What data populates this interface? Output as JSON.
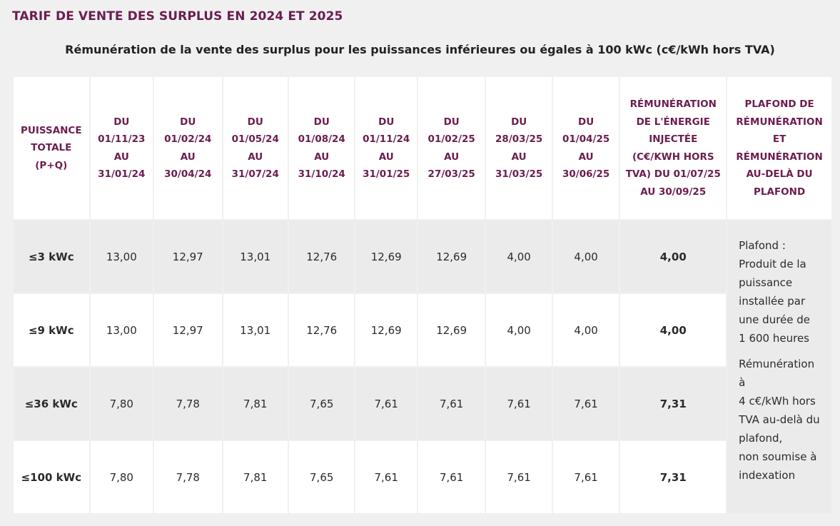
{
  "heading": "TARIF DE VENTE DES SURPLUS EN 2024 ET 2025",
  "caption": "Rémunération de la vente des surplus pour les puissances inférieures ou égales à 100 kWc (c€/kWh hors TVA)",
  "table": {
    "headers": [
      [
        "PUISSANCE",
        "TOTALE",
        "(P+Q)"
      ],
      [
        "DU",
        "01/11/23",
        "AU",
        "31/01/24"
      ],
      [
        "DU",
        "01/02/24",
        "AU",
        "30/04/24"
      ],
      [
        "DU",
        "01/05/24",
        "AU",
        "31/07/24"
      ],
      [
        "DU",
        "01/08/24",
        "AU",
        "31/10/24"
      ],
      [
        "DU",
        "01/11/24",
        "AU",
        "31/01/25"
      ],
      [
        "DU",
        "01/02/25",
        "AU",
        "27/03/25"
      ],
      [
        "DU",
        "28/03/25",
        "AU",
        "31/03/25"
      ],
      [
        "DU",
        "01/04/25",
        "AU",
        "30/06/25"
      ],
      [
        "RÉMUNÉRATION",
        "DE L'ÉNERGIE",
        "INJECTÉE",
        "(C€/KWH HORS",
        "TVA) DU 01/07/25",
        "AU 30/09/25"
      ],
      [
        "PLAFOND DE",
        "RÉMUNÉRATION",
        "ET",
        "RÉMUNÉRATION",
        "AU-DELÀ DU",
        "PLAFOND"
      ]
    ],
    "rows": [
      {
        "label": "≤3 kWc",
        "values": [
          "13,00",
          "12,97",
          "13,01",
          "12,76",
          "12,69",
          "12,69",
          "4,00",
          "4,00"
        ],
        "current": "4,00"
      },
      {
        "label": "≤9 kWc",
        "values": [
          "13,00",
          "12,97",
          "13,01",
          "12,76",
          "12,69",
          "12,69",
          "4,00",
          "4,00"
        ],
        "current": "4,00"
      },
      {
        "label": "≤36 kWc",
        "values": [
          "7,80",
          "7,78",
          "7,81",
          "7,65",
          "7,61",
          "7,61",
          "7,61",
          "7,61"
        ],
        "current": "7,31"
      },
      {
        "label": "≤100 kWc",
        "values": [
          "7,80",
          "7,78",
          "7,81",
          "7,65",
          "7,61",
          "7,61",
          "7,61",
          "7,61"
        ],
        "current": "7,31"
      }
    ],
    "note": {
      "plafond": [
        "Plafond :",
        "Produit de la",
        "puissance",
        "installée par",
        "une durée de",
        "1 600 heures"
      ],
      "remuneration": [
        "Rémunération",
        "à",
        "4 c€/kWh hors",
        "TVA au-delà du",
        "plafond,",
        "non soumise à",
        "indexation"
      ]
    }
  }
}
